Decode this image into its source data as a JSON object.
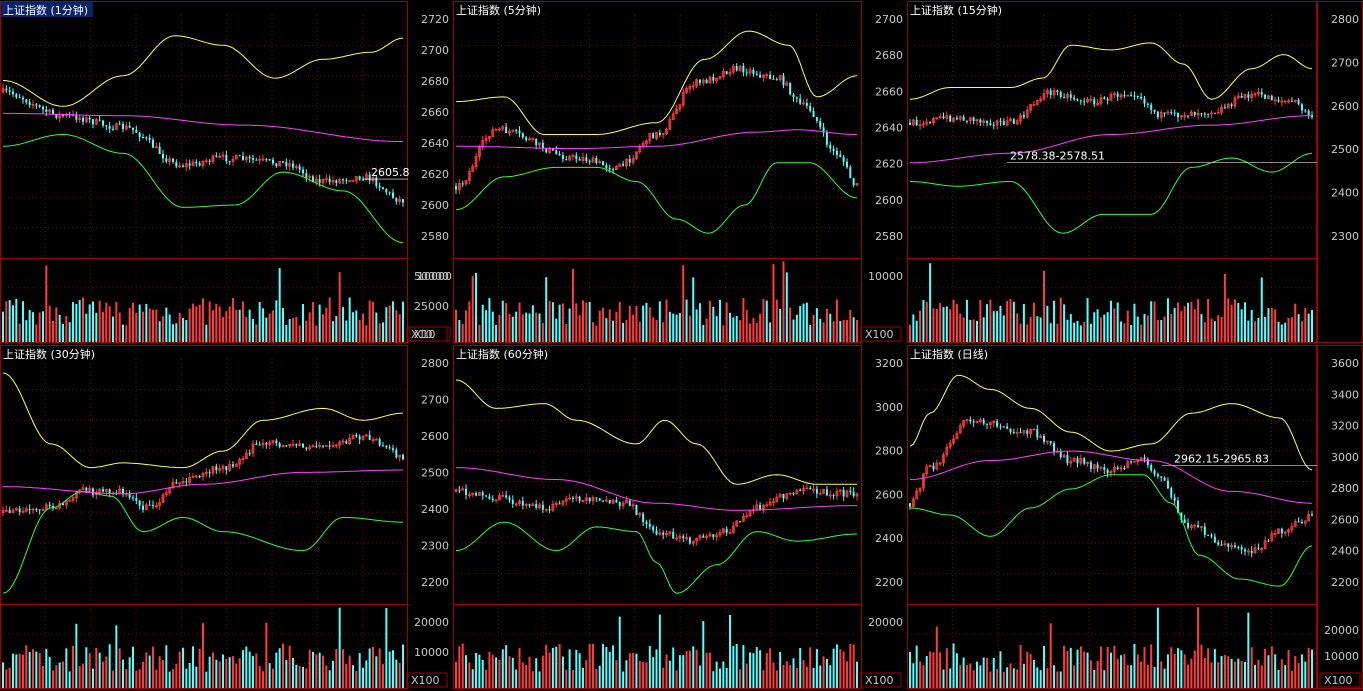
{
  "panels": [
    {
      "id": "p1",
      "title": "上证指数 (1分钟)",
      "title_highlighted": true,
      "price_axis": {
        "labels": [],
        "ymin": 2560,
        "ymax": 2725
      },
      "price_marker": {
        "text": "2605.8"
      },
      "vol_axis": {
        "labels": [
          "10000"
        ],
        "scale_label": "X10"
      }
    },
    {
      "id": "p2",
      "title": "上证指数 (5分钟)",
      "title_highlighted": false,
      "price_axis": {
        "labels": [
          "2720",
          "2700",
          "2680",
          "2660",
          "2640",
          "2620",
          "2600",
          "2580"
        ],
        "ymin": 2565,
        "ymax": 2728
      },
      "vol_axis": {
        "labels": [
          "50000",
          "25000"
        ],
        "scale_label": "X10"
      }
    },
    {
      "id": "p3",
      "title": "上证指数 (15分钟)",
      "title_highlighted": false,
      "price_axis": {
        "labels": [
          "2700",
          "2680",
          "2660",
          "2640",
          "2620",
          "2600",
          "2580"
        ],
        "ymin": 2562,
        "ymax": 2712
      },
      "right_axis": {
        "labels": [
          "2800",
          "2700",
          "2600",
          "2500",
          "2400",
          "2300"
        ]
      },
      "range_label": "2578.38-2578.51",
      "vol_axis": {
        "labels": [
          "10000"
        ],
        "scale_label": "X100"
      }
    },
    {
      "id": "p4",
      "title": "上证指数 (30分钟)",
      "title_highlighted": false,
      "price_axis": {
        "labels": [],
        "ymin": 2150,
        "ymax": 2860
      },
      "vol_axis": {
        "labels": [],
        "scale_label": ""
      }
    },
    {
      "id": "p5",
      "title": "上证指数 (60分钟)",
      "title_highlighted": false,
      "price_axis": {
        "labels": [
          "2800",
          "2700",
          "2600",
          "2500",
          "2400",
          "2300",
          "2200"
        ],
        "ymin": 2150,
        "ymax": 2860
      },
      "vol_axis": {
        "labels": [
          "20000",
          "10000"
        ],
        "scale_label": "X100"
      }
    },
    {
      "id": "p6",
      "title": "上证指数 (日线)",
      "title_highlighted": false,
      "price_axis": {
        "labels": [
          "3200",
          "3000",
          "2800",
          "2600",
          "2400",
          "2200"
        ],
        "ymin": 2080,
        "ymax": 3320
      },
      "right_axis": {
        "labels": [
          "3600",
          "3400",
          "3200",
          "3000",
          "2800",
          "2600",
          "2400",
          "2200"
        ]
      },
      "range_label": "2962.15-2965.83",
      "vol_axis": {
        "labels": [
          "20000"
        ],
        "scale_label": "X100"
      },
      "right_vol_axis": {
        "labels": [
          "20000",
          "10000"
        ],
        "scale_label": "X100"
      }
    }
  ],
  "colors": {
    "background": "#000000",
    "frame": "#a00000",
    "grid": "#7a0000",
    "axis_text": "#c8c8c8",
    "up": "#ff3c3c",
    "down": "#54ffff",
    "upper_band": "#ffff50",
    "lower_band": "#30ff30",
    "middle_band": "#ff40ff",
    "title_highlight": "#0a246a"
  }
}
